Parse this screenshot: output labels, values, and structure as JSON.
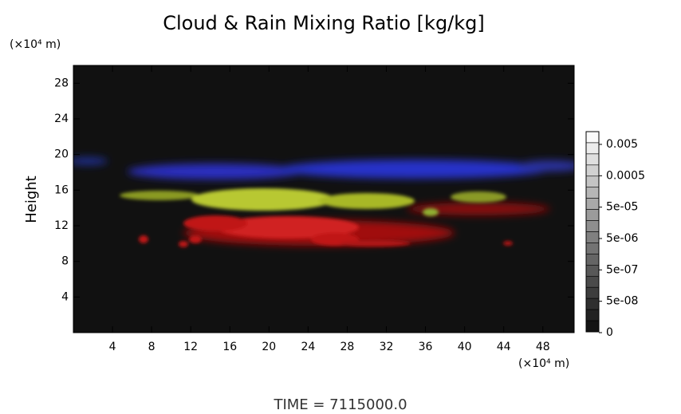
{
  "chart_data": {
    "type": "volume-render",
    "title": "Cloud & Rain Mixing Ratio [kg/kg]",
    "y_label": "Height",
    "y_unit": "(×10⁴ m)",
    "x_unit": "(×10⁴ m)",
    "footer": "TIME = 7115000.0",
    "xlim": [
      0,
      51.2
    ],
    "xticks": [
      4,
      8,
      12,
      16,
      20,
      24,
      28,
      32,
      36,
      40,
      44,
      48
    ],
    "ylim": [
      0,
      30
    ],
    "yticks": [
      4,
      8,
      12,
      16,
      20,
      24,
      28
    ],
    "colorbar_ticks": [
      0.005,
      0.0005,
      {
        "value": 5e-05,
        "label": "5e-05"
      },
      {
        "value": 5e-06,
        "label": "5e-06"
      },
      {
        "value": 5e-07,
        "label": "5e-07"
      },
      {
        "value": 5e-08,
        "label": "5e-08"
      },
      0
    ]
  }
}
